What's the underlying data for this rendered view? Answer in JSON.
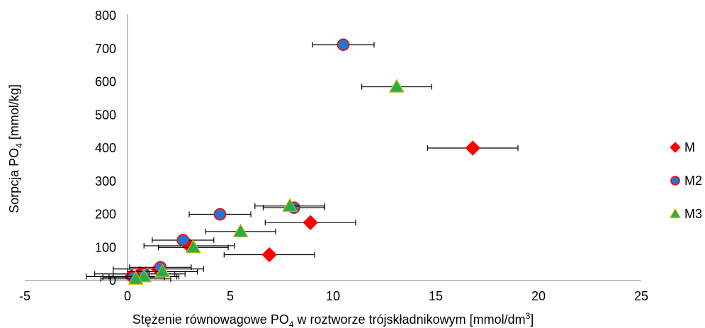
{
  "chart_data": {
    "type": "scatter",
    "xlabel": "Stężenie równowagowe PO4 w roztworze trójskładnikowym [mmol/dm3]",
    "xlabel_parts": {
      "pre": "Stężenie równowagowe PO",
      "sub": "4",
      "mid": " w roztworze trójskładnikowym [mmol/dm",
      "sup": "3",
      "post": "]"
    },
    "ylabel": "Sorpcja PO4 [mmol/kg]",
    "ylabel_parts": {
      "pre": "Sorpcja PO",
      "sub": "4",
      "post": " [mmol/kg]"
    },
    "xlim": [
      -5,
      25
    ],
    "ylim": [
      0,
      800
    ],
    "x_ticks": [
      "-5",
      "0",
      "5",
      "10",
      "15",
      "20",
      "25"
    ],
    "y_ticks": [
      "0",
      "100",
      "200",
      "300",
      "400",
      "500",
      "600",
      "700",
      "800"
    ],
    "legend_position": "right",
    "series": [
      {
        "name": "M",
        "marker": "diamond",
        "color": "#ff0000",
        "points": [
          {
            "x": 16.8,
            "y": 400,
            "xerr": 2.2
          },
          {
            "x": 8.9,
            "y": 175,
            "xerr": 2.2
          },
          {
            "x": 6.9,
            "y": 78,
            "xerr": 2.2
          },
          {
            "x": 3.0,
            "y": 105,
            "xerr": 2.2
          },
          {
            "x": 1.5,
            "y": 35,
            "xerr": 2.2
          },
          {
            "x": 0.6,
            "y": 20,
            "xerr": 2.2
          },
          {
            "x": 0.2,
            "y": 12,
            "xerr": 2.2
          }
        ]
      },
      {
        "name": "M2",
        "marker": "circle",
        "color": "#1f77d0",
        "stroke": "#ff0000",
        "points": [
          {
            "x": 10.5,
            "y": 712,
            "xerr": 1.5
          },
          {
            "x": 4.5,
            "y": 200,
            "xerr": 1.5
          },
          {
            "x": 8.1,
            "y": 220,
            "xerr": 1.5
          },
          {
            "x": 2.7,
            "y": 122,
            "xerr": 1.5
          },
          {
            "x": 1.6,
            "y": 40,
            "xerr": 1.5
          },
          {
            "x": 0.8,
            "y": 20,
            "xerr": 1.5
          },
          {
            "x": 0.3,
            "y": 10,
            "xerr": 1.5
          }
        ]
      },
      {
        "name": "M3",
        "marker": "triangle",
        "color": "#22b04a",
        "stroke": "#c8b400",
        "points": [
          {
            "x": 13.1,
            "y": 585,
            "xerr": 1.7
          },
          {
            "x": 7.9,
            "y": 225,
            "xerr": 1.7
          },
          {
            "x": 5.5,
            "y": 148,
            "xerr": 1.7
          },
          {
            "x": 3.2,
            "y": 100,
            "xerr": 1.7
          },
          {
            "x": 1.7,
            "y": 27,
            "xerr": 1.7
          },
          {
            "x": 0.8,
            "y": 12,
            "xerr": 1.7
          },
          {
            "x": 0.4,
            "y": 5,
            "xerr": 1.7
          }
        ]
      }
    ]
  }
}
